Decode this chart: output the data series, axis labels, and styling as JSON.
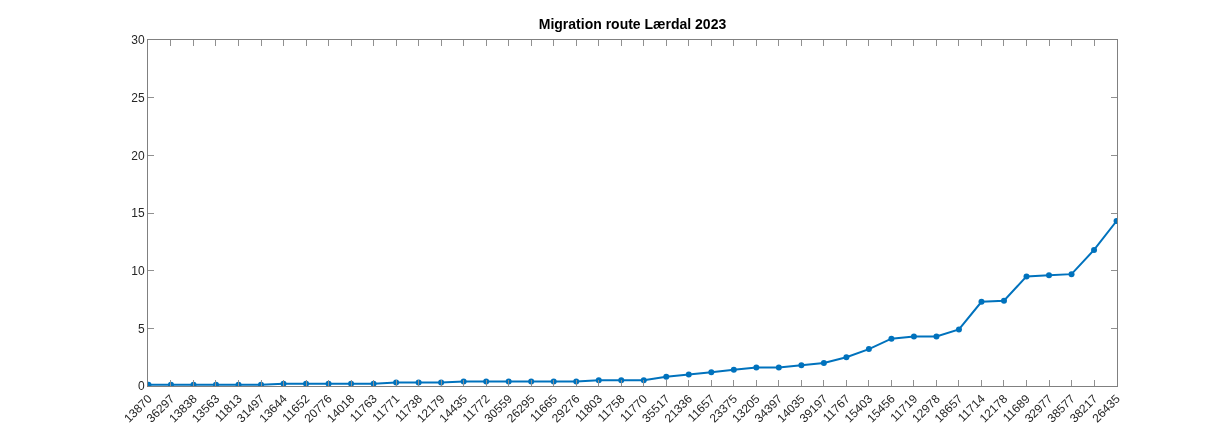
{
  "chart_data": {
    "type": "line",
    "title": "Migration route Lærdal 2023",
    "categories": [
      "13870",
      "36297",
      "13838",
      "13563",
      "11813",
      "31497",
      "13644",
      "11652",
      "20776",
      "14018",
      "11763",
      "11771",
      "11738",
      "12179",
      "14435",
      "11772",
      "30559",
      "26295",
      "11665",
      "29276",
      "11803",
      "11758",
      "11770",
      "35517",
      "21336",
      "11657",
      "23375",
      "13205",
      "34397",
      "14035",
      "39197",
      "11767",
      "15403",
      "15456",
      "11719",
      "12978",
      "18657",
      "11714",
      "12178",
      "11689",
      "32977",
      "38577",
      "38217",
      "26435"
    ],
    "series": [
      {
        "color": "#0072bd",
        "values": [
          0.1,
          0.1,
          0.1,
          0.1,
          0.1,
          0.1,
          0.2,
          0.2,
          0.2,
          0.2,
          0.2,
          0.3,
          0.3,
          0.3,
          0.4,
          0.4,
          0.4,
          0.4,
          0.4,
          0.4,
          0.5,
          0.5,
          0.5,
          0.8,
          1.0,
          1.2,
          1.4,
          1.6,
          1.6,
          1.8,
          2.0,
          2.5,
          3.2,
          4.1,
          4.3,
          4.3,
          4.9,
          7.3,
          7.4,
          9.5,
          9.6,
          9.7,
          11.8,
          14.3
        ]
      }
    ],
    "ylim": [
      0,
      30
    ],
    "yticks": [
      0,
      5,
      10,
      15,
      20,
      25,
      30
    ],
    "marker": "circle",
    "line_style": "solid"
  }
}
